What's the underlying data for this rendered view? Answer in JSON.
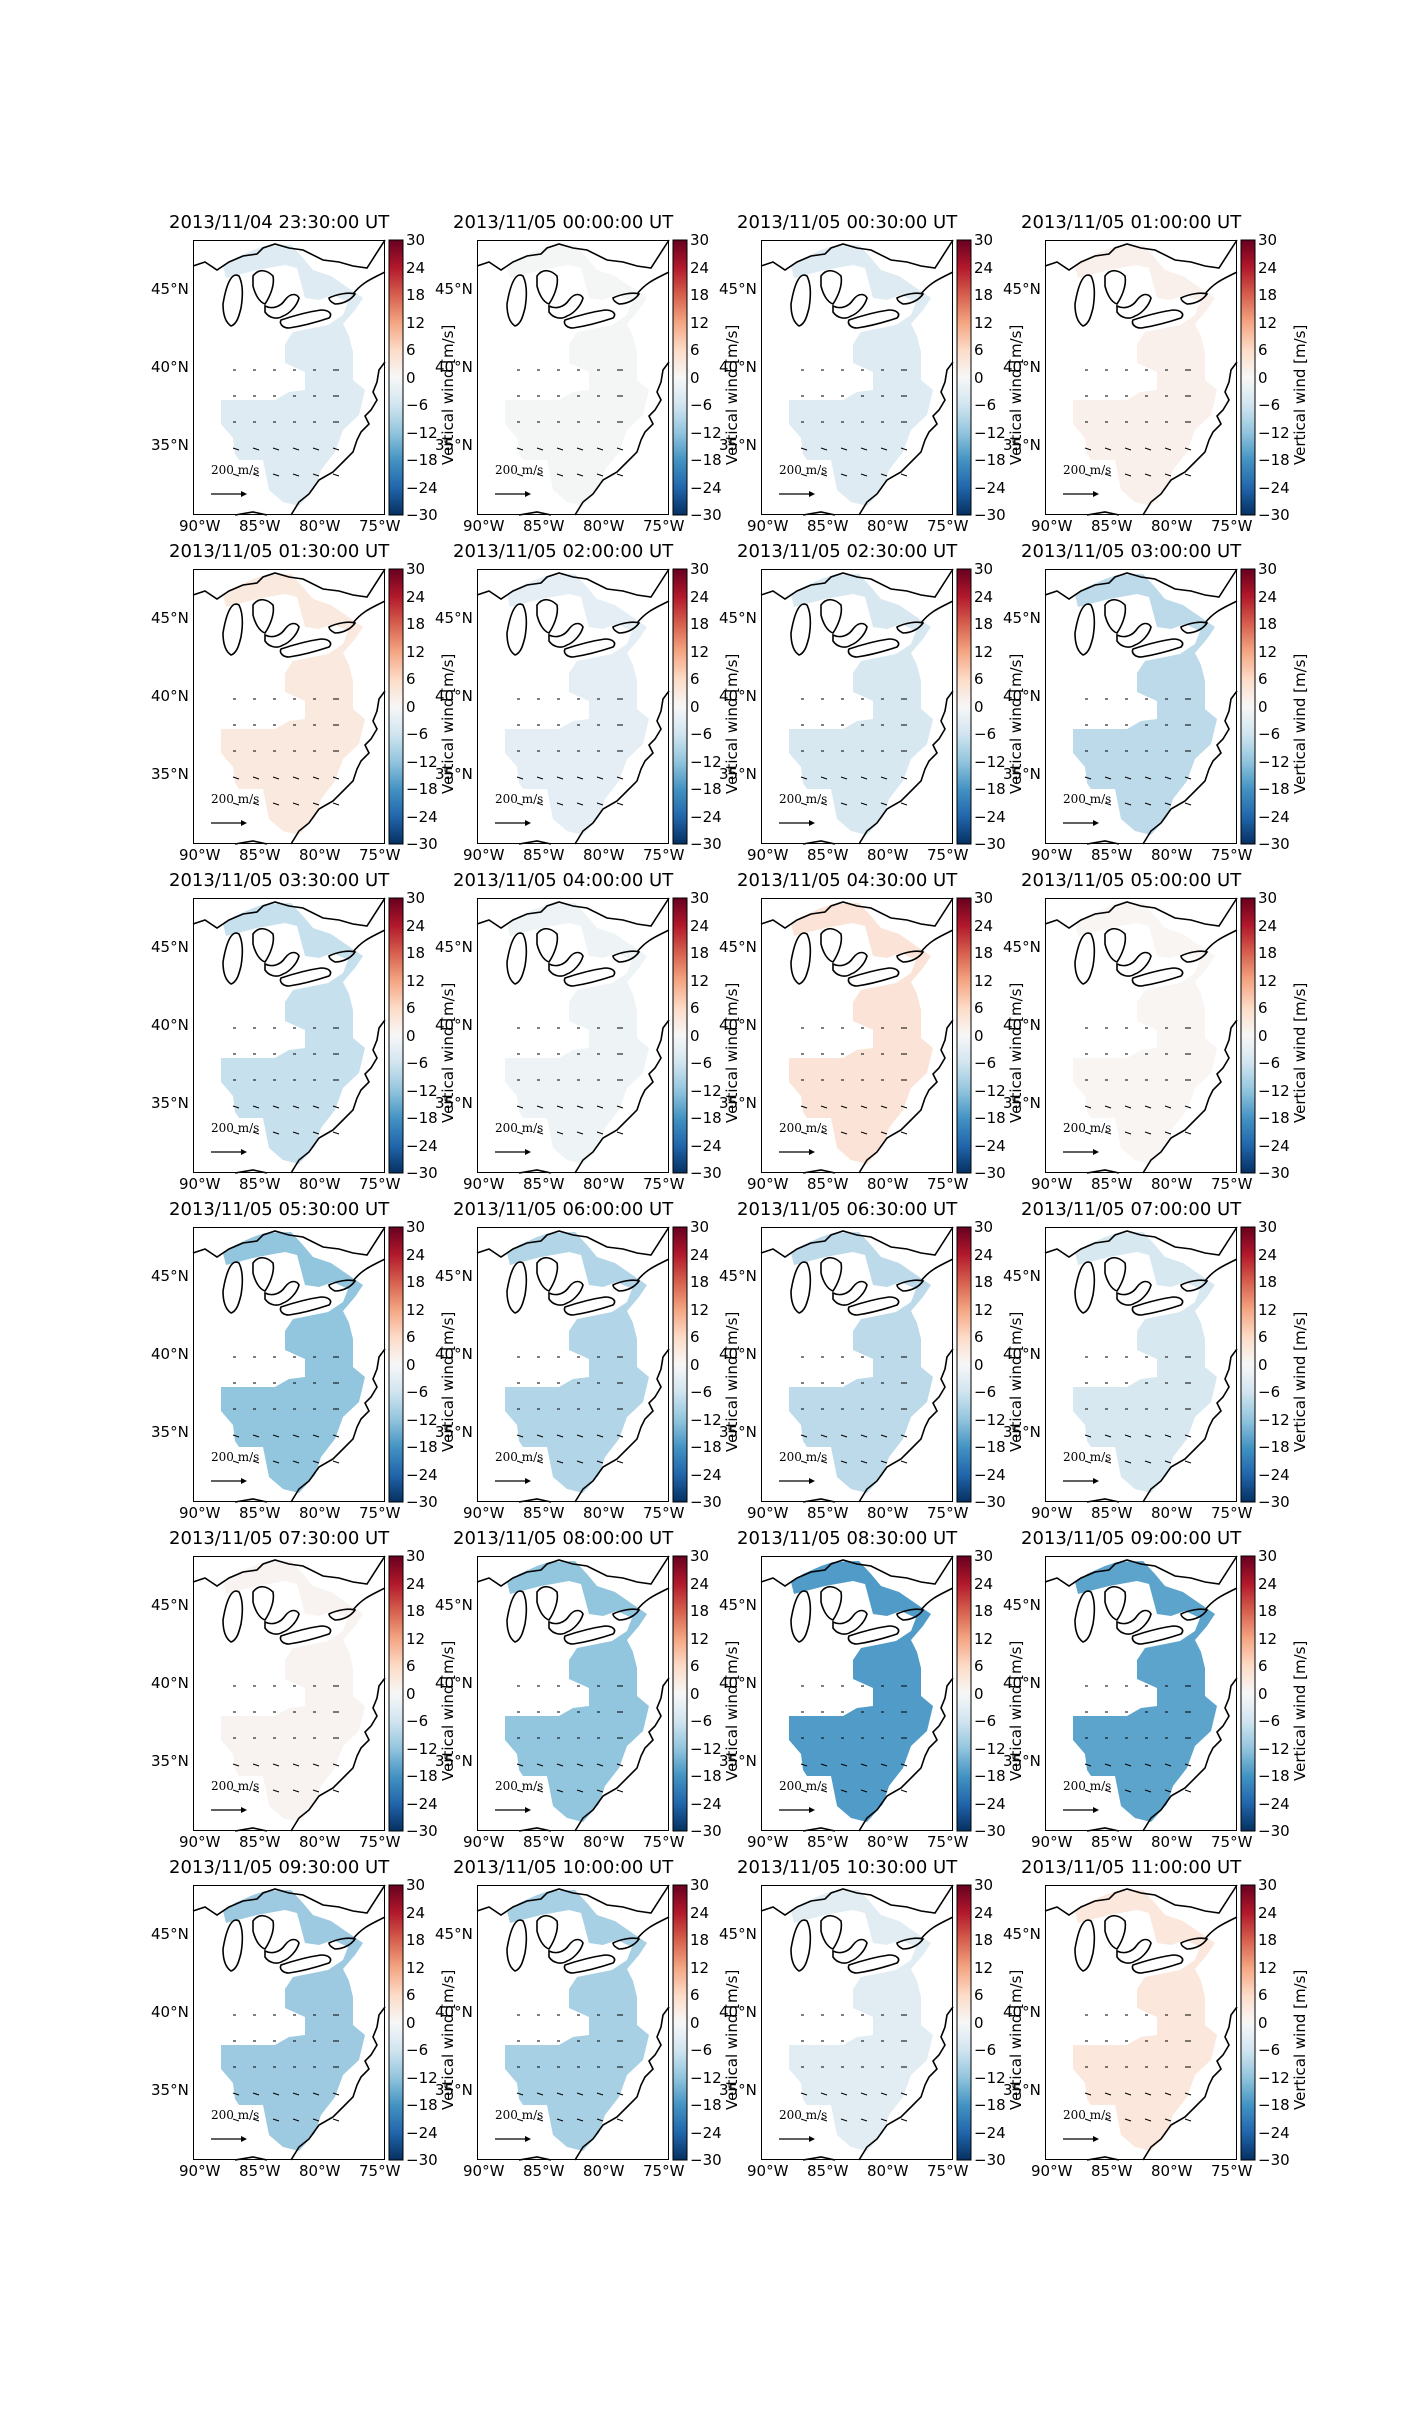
{
  "colorbar": {
    "label": "Vertical wind [m/s]",
    "min": -30,
    "max": 30,
    "ticks": [
      "30",
      "24",
      "18",
      "12",
      "6",
      "0",
      "−6",
      "−12",
      "−18",
      "−24",
      "−30"
    ],
    "colors": [
      "#053061",
      "#2166ac",
      "#4393c3",
      "#92c5de",
      "#d1e5f0",
      "#f7f7f7",
      "#fddbc7",
      "#f4a582",
      "#d6604d",
      "#b2182b",
      "#67001f"
    ]
  },
  "axes": {
    "lat_labels": [
      "45°N",
      "40°N",
      "35°N"
    ],
    "lon_labels": [
      "90°W",
      "85°W",
      "80°W",
      "75°W"
    ]
  },
  "vector_key": {
    "label": "200",
    "unit": "m/s"
  },
  "panels": [
    {
      "title": "2013/11/04 23:30:00 UT",
      "value": -4
    },
    {
      "title": "2013/11/05 00:00:00 UT",
      "value": -0.5
    },
    {
      "title": "2013/11/05 00:30:00 UT",
      "value": -4
    },
    {
      "title": "2013/11/05 01:00:00 UT",
      "value": 1.5
    },
    {
      "title": "2013/11/05 01:30:00 UT",
      "value": 3
    },
    {
      "title": "2013/11/05 02:00:00 UT",
      "value": -3
    },
    {
      "title": "2013/11/05 02:30:00 UT",
      "value": -5
    },
    {
      "title": "2013/11/05 03:00:00 UT",
      "value": -8
    },
    {
      "title": "2013/11/05 03:30:00 UT",
      "value": -7
    },
    {
      "title": "2013/11/05 04:00:00 UT",
      "value": -1.5
    },
    {
      "title": "2013/11/05 04:30:00 UT",
      "value": 4
    },
    {
      "title": "2013/11/05 05:00:00 UT",
      "value": 0.5
    },
    {
      "title": "2013/11/05 05:30:00 UT",
      "value": -12
    },
    {
      "title": "2013/11/05 06:00:00 UT",
      "value": -9
    },
    {
      "title": "2013/11/05 06:30:00 UT",
      "value": -8
    },
    {
      "title": "2013/11/05 07:00:00 UT",
      "value": -5
    },
    {
      "title": "2013/11/05 07:30:00 UT",
      "value": 0.8
    },
    {
      "title": "2013/11/05 08:00:00 UT",
      "value": -12
    },
    {
      "title": "2013/11/05 08:30:00 UT",
      "value": -17
    },
    {
      "title": "2013/11/05 09:00:00 UT",
      "value": -16
    },
    {
      "title": "2013/11/05 09:30:00 UT",
      "value": -11
    },
    {
      "title": "2013/11/05 10:00:00 UT",
      "value": -10
    },
    {
      "title": "2013/11/05 10:30:00 UT",
      "value": -3.5
    },
    {
      "title": "2013/11/05 11:00:00 UT",
      "value": 3.5
    }
  ]
}
